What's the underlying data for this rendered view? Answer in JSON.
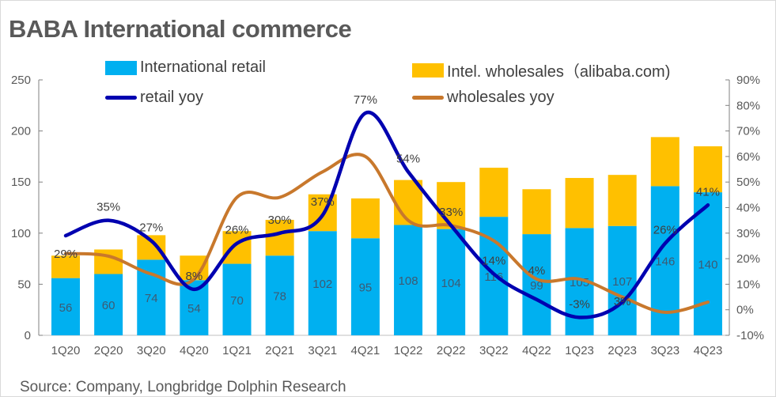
{
  "chart_data": {
    "type": "bar",
    "title": "BABA International commerce",
    "categories": [
      "1Q20",
      "2Q20",
      "3Q20",
      "4Q20",
      "1Q21",
      "2Q21",
      "3Q21",
      "4Q21",
      "1Q22",
      "2Q22",
      "3Q22",
      "4Q22",
      "1Q23",
      "2Q23",
      "3Q23",
      "4Q23"
    ],
    "series": [
      {
        "name": "International retail",
        "kind": "bar",
        "axis": "left",
        "color": "#00b0f0",
        "values": [
          56,
          60,
          74,
          54,
          70,
          78,
          102,
          95,
          108,
          104,
          116,
          99,
          105,
          107,
          146,
          140
        ]
      },
      {
        "name": "Intel. wholesales（alibaba.com)",
        "kind": "bar",
        "axis": "left",
        "color": "#ffc000",
        "values": [
          22,
          24,
          24,
          24,
          32,
          35,
          36,
          39,
          44,
          46,
          48,
          44,
          49,
          50,
          48,
          45
        ]
      },
      {
        "name": "retail yoy",
        "kind": "line",
        "axis": "right",
        "color": "#0000b0",
        "values": [
          29,
          35,
          27,
          8,
          26,
          30,
          37,
          77,
          54,
          33,
          14,
          4,
          -3,
          3,
          26,
          41
        ],
        "labels": [
          "29%",
          "35%",
          "27%",
          "8%",
          "26%",
          "30%",
          "37%",
          "77%",
          "54%",
          "33%",
          "14%",
          "4%",
          "-3%",
          "3%",
          "26%",
          "41%"
        ]
      },
      {
        "name": "wholesales yoy",
        "kind": "line",
        "axis": "right",
        "color": "#c8782c",
        "values": [
          22,
          21,
          14,
          12,
          44,
          44,
          54,
          60,
          35,
          33,
          27,
          12,
          12,
          5,
          -1,
          3
        ]
      }
    ],
    "yleft": {
      "range": [
        0,
        250
      ],
      "ticks": [
        "0",
        "50",
        "100",
        "150",
        "200",
        "250"
      ]
    },
    "yright": {
      "range": [
        -10,
        90
      ],
      "ticks": [
        "-10%",
        "0%",
        "10%",
        "20%",
        "30%",
        "40%",
        "50%",
        "60%",
        "70%",
        "80%",
        "90%"
      ]
    },
    "legend": "top",
    "grid": false,
    "source": "Source: Company, Longbridge Dolphin Research"
  }
}
